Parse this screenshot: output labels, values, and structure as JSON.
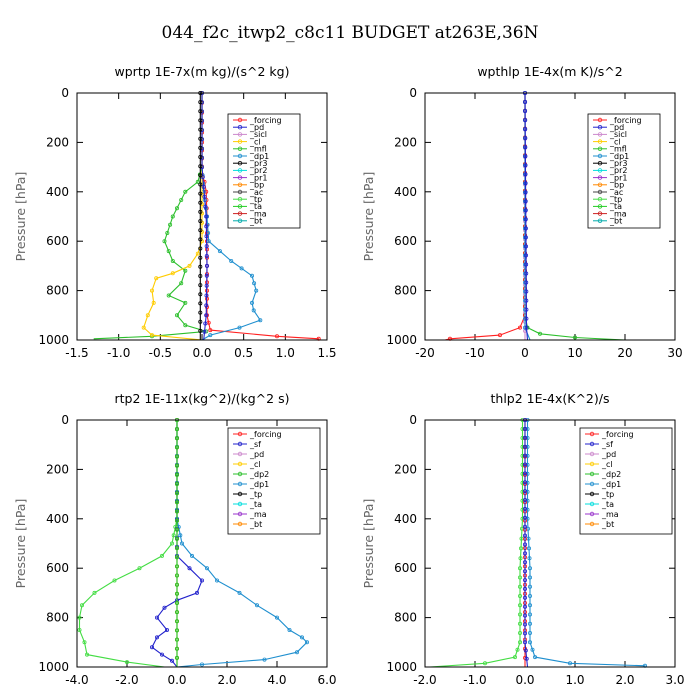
{
  "title": "044_f2c_itwp2_c8c11  BUDGET at263E,36N",
  "chart_data": [
    {
      "type": "line",
      "title": "wprtp   1E-7x(m kg)/(s^2 kg)",
      "ylabel": "Pressure  [hPa]",
      "xlim": [
        -1.5,
        1.5
      ],
      "ylim": [
        1000,
        0
      ],
      "xticks": [
        "-1.5",
        "-1.0",
        "-0.5",
        "0.0",
        "0.5",
        "1.0",
        "1.5"
      ],
      "yticks": [
        "0",
        "200",
        "400",
        "600",
        "800",
        "1000"
      ],
      "legend": [
        "_forcing",
        "_pd",
        "_sicl",
        "_cl",
        "_mfl",
        "_dp1",
        "_pr3",
        "_pr2",
        "_pr1",
        "_bp",
        "_ac",
        "_tp",
        "_ta",
        "_ma",
        "_bt"
      ],
      "series": [
        {
          "color": "#ff2020",
          "points": [
            [
              0.0,
              0
            ],
            [
              0.0,
              200
            ],
            [
              0.0,
              330
            ],
            [
              0.03,
              360
            ],
            [
              0.05,
              400
            ],
            [
              0.06,
              500
            ],
            [
              0.06,
              600
            ],
            [
              0.06,
              700
            ],
            [
              0.06,
              800
            ],
            [
              0.06,
              900
            ],
            [
              0.1,
              960
            ],
            [
              0.9,
              985
            ],
            [
              1.4,
              995
            ],
            [
              1.4,
              1000
            ]
          ]
        },
        {
          "color": "#1f8fcf",
          "points": [
            [
              0.0,
              0
            ],
            [
              0.0,
              300
            ],
            [
              0.02,
              400
            ],
            [
              0.06,
              500
            ],
            [
              0.08,
              600
            ],
            [
              0.35,
              680
            ],
            [
              0.6,
              740
            ],
            [
              0.65,
              800
            ],
            [
              0.6,
              850
            ],
            [
              0.62,
              880
            ],
            [
              0.7,
              920
            ],
            [
              0.45,
              950
            ],
            [
              0.1,
              980
            ],
            [
              0.0,
              1000
            ]
          ]
        },
        {
          "color": "#2bbf2b",
          "points": [
            [
              0.0,
              0
            ],
            [
              0.0,
              300
            ],
            [
              -0.05,
              360
            ],
            [
              -0.2,
              400
            ],
            [
              -0.35,
              500
            ],
            [
              -0.45,
              600
            ],
            [
              -0.35,
              680
            ],
            [
              -0.2,
              720
            ],
            [
              -0.25,
              770
            ],
            [
              -0.4,
              820
            ],
            [
              -0.2,
              850
            ],
            [
              -0.3,
              900
            ],
            [
              -0.2,
              940
            ],
            [
              0.05,
              965
            ],
            [
              -0.6,
              985
            ],
            [
              -1.3,
              995
            ]
          ]
        },
        {
          "color": "#ffcc00",
          "points": [
            [
              0.0,
              0
            ],
            [
              0.0,
              600
            ],
            [
              -0.05,
              650
            ],
            [
              -0.15,
              700
            ],
            [
              -0.35,
              730
            ],
            [
              -0.55,
              750
            ],
            [
              -0.6,
              800
            ],
            [
              -0.58,
              850
            ],
            [
              -0.65,
              900
            ],
            [
              -0.7,
              950
            ],
            [
              -0.6,
              980
            ],
            [
              0.0,
              1000
            ]
          ]
        },
        {
          "color": "#2222cc",
          "points": [
            [
              0.0,
              0
            ],
            [
              0.0,
              300
            ],
            [
              0.05,
              500
            ],
            [
              0.06,
              700
            ],
            [
              0.05,
              900
            ],
            [
              0.02,
              1000
            ]
          ]
        },
        {
          "color": "#000000",
          "points": [
            [
              -0.02,
              0
            ],
            [
              -0.02,
              1000
            ]
          ]
        }
      ]
    },
    {
      "type": "line",
      "title": "wpthlp   1E-4x(m K)/s^2",
      "ylabel": "Pressure  [hPa]",
      "xlim": [
        -20,
        30
      ],
      "ylim": [
        1000,
        0
      ],
      "xticks": [
        "-20",
        "-10",
        "0",
        "10",
        "20",
        "30"
      ],
      "yticks": [
        "0",
        "200",
        "400",
        "600",
        "800",
        "1000"
      ],
      "legend": [
        "_forcing",
        "_pd",
        "_sicl",
        "_cl",
        "_mfl",
        "_dp1",
        "_pr3",
        "_pr2",
        "_pr1",
        "_bp",
        "_ac",
        "_tp",
        "_ta",
        "_ma",
        "_bt"
      ],
      "series": [
        {
          "color": "#cc88cc",
          "points": [
            [
              0,
              0
            ],
            [
              0,
              1000
            ]
          ]
        },
        {
          "color": "#2bbf2b",
          "points": [
            [
              0,
              0
            ],
            [
              0,
              900
            ],
            [
              0.5,
              950
            ],
            [
              3,
              975
            ],
            [
              10,
              990
            ],
            [
              20,
              1000
            ]
          ]
        },
        {
          "color": "#ff2020",
          "points": [
            [
              0,
              0
            ],
            [
              0,
              900
            ],
            [
              -1,
              950
            ],
            [
              -5,
              980
            ],
            [
              -15,
              995
            ],
            [
              -16,
              1000
            ]
          ]
        },
        {
          "color": "#1f8fcf",
          "points": [
            [
              0,
              0
            ],
            [
              0,
              950
            ],
            [
              1,
              1000
            ]
          ]
        },
        {
          "color": "#2222cc",
          "points": [
            [
              0,
              0
            ],
            [
              0.3,
              950
            ],
            [
              0.5,
              1000
            ]
          ]
        }
      ]
    },
    {
      "type": "line",
      "title": "rtp2   1E-11x(kg^2)/(kg^2 s)",
      "ylabel": "Pressure  [hPa]",
      "xlim": [
        -4.0,
        6.0
      ],
      "ylim": [
        1000,
        0
      ],
      "xticks": [
        "-4.0",
        "-2.0",
        "0.0",
        "2.0",
        "4.0",
        "6.0"
      ],
      "yticks": [
        "0",
        "200",
        "400",
        "600",
        "800",
        "1000"
      ],
      "legend": [
        "_forcing",
        "_sf",
        "_pd",
        "_cl",
        "_dp2",
        "_dp1",
        "_tp",
        "_ta",
        "_ma",
        "_bt"
      ],
      "series": [
        {
          "color": "#44dd44",
          "points": [
            [
              0.0,
              0
            ],
            [
              0.0,
              400
            ],
            [
              -0.2,
              500
            ],
            [
              -0.6,
              550
            ],
            [
              -1.5,
              600
            ],
            [
              -2.5,
              650
            ],
            [
              -3.3,
              700
            ],
            [
              -3.8,
              750
            ],
            [
              -3.9,
              800
            ],
            [
              -3.9,
              850
            ],
            [
              -3.7,
              900
            ],
            [
              -3.6,
              950
            ],
            [
              -2.0,
              980
            ],
            [
              -0.5,
              1000
            ]
          ]
        },
        {
          "color": "#1f8fcf",
          "points": [
            [
              0.0,
              0
            ],
            [
              0.0,
              400
            ],
            [
              0.2,
              500
            ],
            [
              0.6,
              550
            ],
            [
              1.2,
              600
            ],
            [
              1.6,
              650
            ],
            [
              2.5,
              700
            ],
            [
              3.2,
              750
            ],
            [
              4.0,
              800
            ],
            [
              4.5,
              850
            ],
            [
              5.0,
              880
            ],
            [
              5.2,
              900
            ],
            [
              4.8,
              940
            ],
            [
              3.5,
              970
            ],
            [
              1.0,
              990
            ],
            [
              0.0,
              1000
            ]
          ]
        },
        {
          "color": "#2222cc",
          "points": [
            [
              0.0,
              0
            ],
            [
              0.0,
              550
            ],
            [
              0.5,
              600
            ],
            [
              1.0,
              650
            ],
            [
              0.8,
              700
            ],
            [
              0.0,
              730
            ],
            [
              -0.5,
              760
            ],
            [
              -0.8,
              800
            ],
            [
              -0.4,
              850
            ],
            [
              -0.8,
              880
            ],
            [
              -1.0,
              920
            ],
            [
              -0.6,
              950
            ],
            [
              -0.2,
              975
            ],
            [
              0.0,
              1000
            ]
          ]
        },
        {
          "color": "#ff2020",
          "points": [
            [
              0.0,
              0
            ],
            [
              0.0,
              1000
            ]
          ]
        },
        {
          "color": "#22cc22",
          "points": [
            [
              0.0,
              0
            ],
            [
              0.0,
              1000
            ]
          ]
        }
      ]
    },
    {
      "type": "line",
      "title": "thlp2   1E-4x(K^2)/s",
      "ylabel": "Pressure  [hPa]",
      "xlim": [
        -2.0,
        3.0
      ],
      "ylim": [
        1000,
        0
      ],
      "xticks": [
        "-2.0",
        "-1.0",
        "0.0",
        "1.0",
        "2.0",
        "3.0"
      ],
      "yticks": [
        "0",
        "200",
        "400",
        "600",
        "800",
        "1000"
      ],
      "legend": [
        "_forcing",
        "_sf",
        "_pd",
        "_cl",
        "_dp2",
        "_dp1",
        "_tp",
        "_ta",
        "_ma",
        "_bt"
      ],
      "series": [
        {
          "color": "#44dd44",
          "points": [
            [
              -0.05,
              0
            ],
            [
              -0.05,
              400
            ],
            [
              -0.1,
              600
            ],
            [
              -0.1,
              900
            ],
            [
              -0.2,
              960
            ],
            [
              -0.8,
              985
            ],
            [
              -1.9,
              1000
            ]
          ]
        },
        {
          "color": "#1f8fcf",
          "points": [
            [
              0.05,
              0
            ],
            [
              0.05,
              400
            ],
            [
              0.1,
              600
            ],
            [
              0.1,
              900
            ],
            [
              0.2,
              960
            ],
            [
              0.9,
              985
            ],
            [
              2.4,
              995
            ],
            [
              2.4,
              1000
            ]
          ]
        },
        {
          "color": "#ff2020",
          "points": [
            [
              0.0,
              0
            ],
            [
              0.0,
              1000
            ]
          ]
        },
        {
          "color": "#2222cc",
          "points": [
            [
              0.0,
              0
            ],
            [
              0.0,
              900
            ],
            [
              0.05,
              1000
            ]
          ]
        }
      ]
    }
  ]
}
